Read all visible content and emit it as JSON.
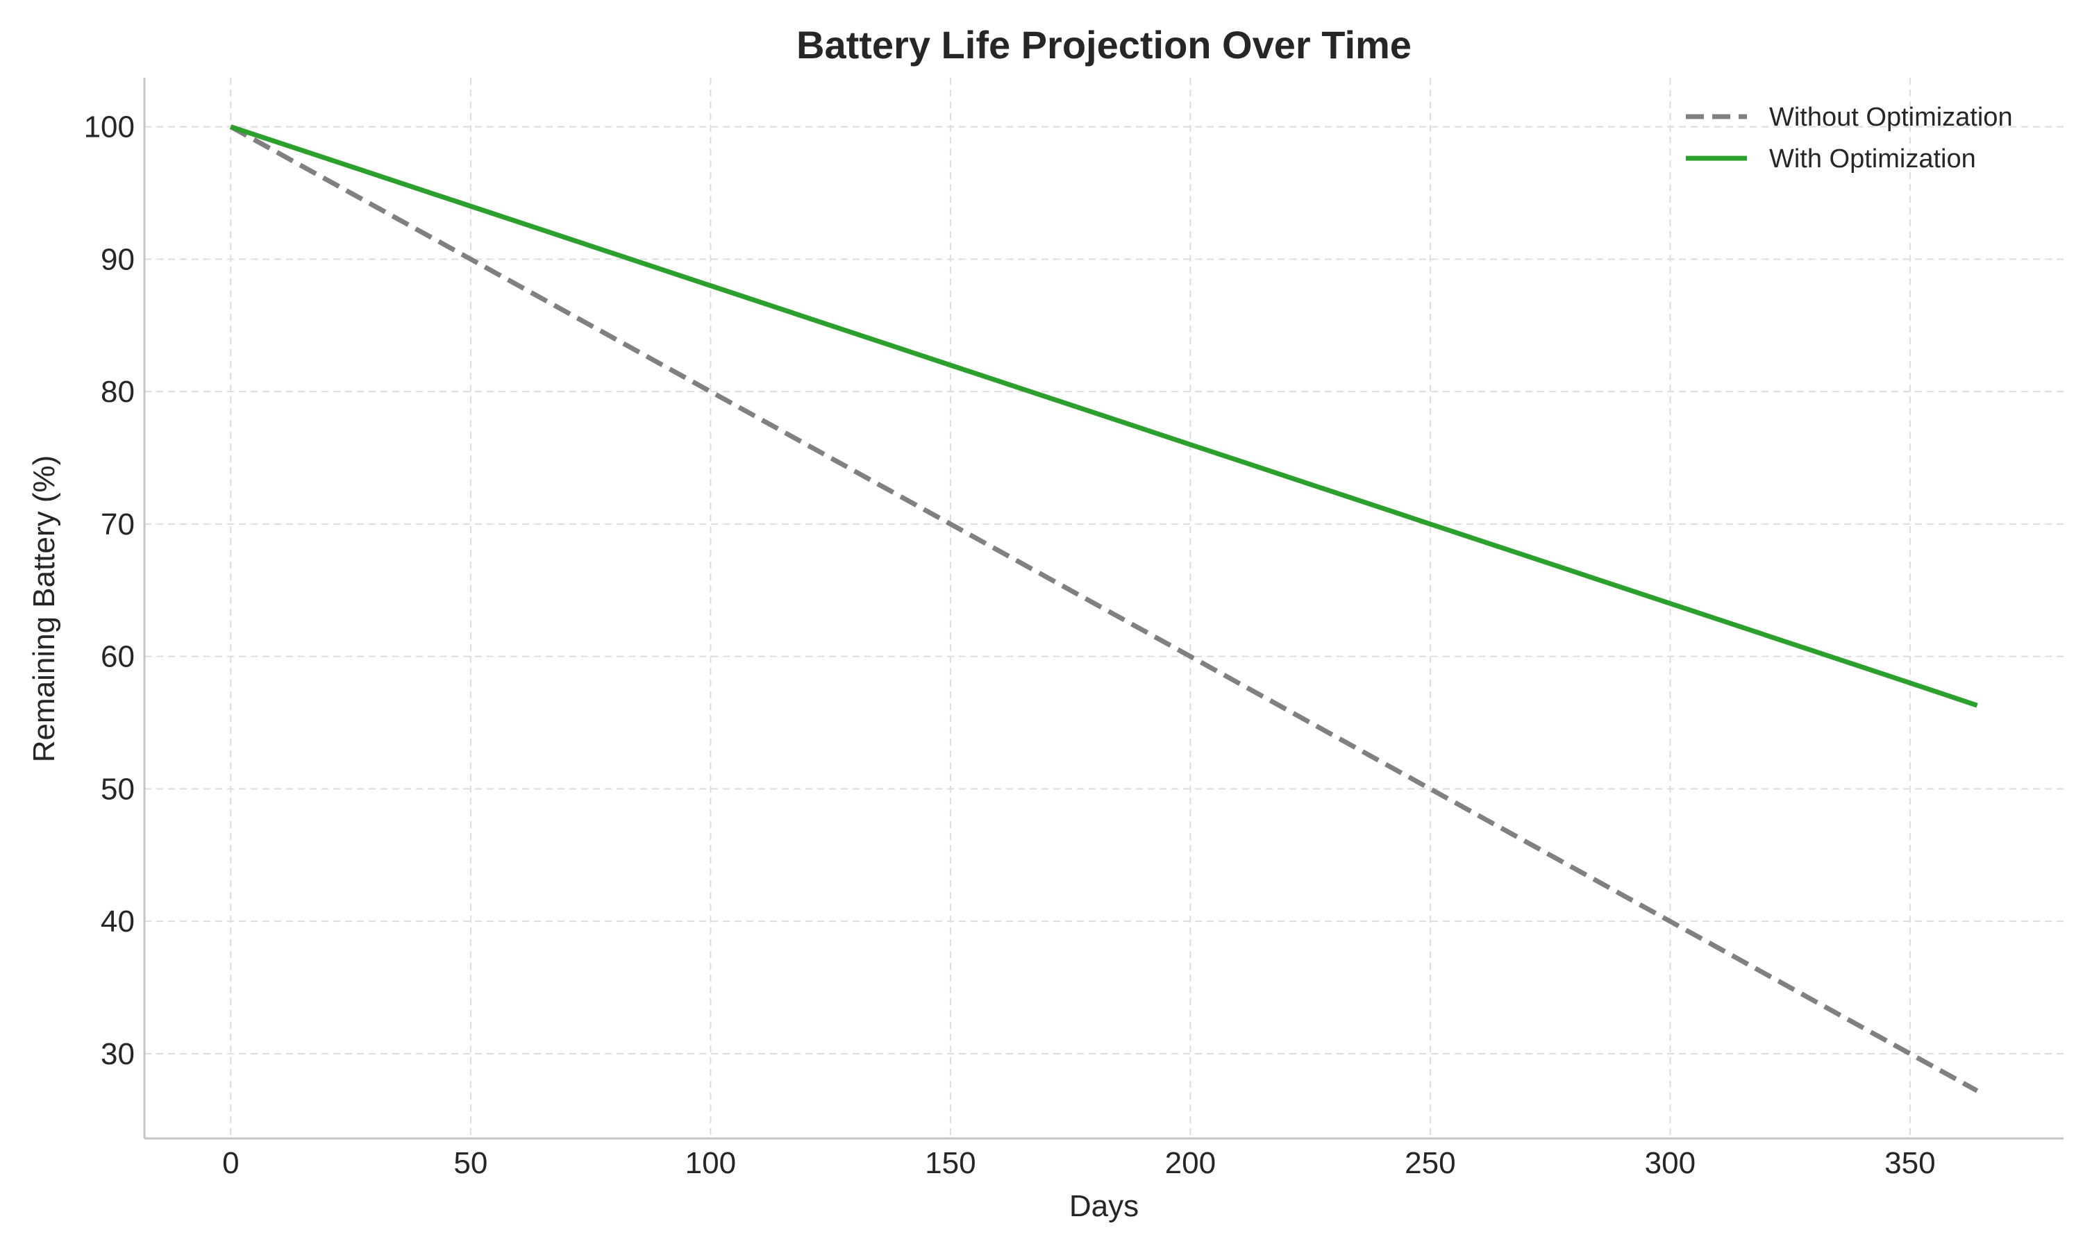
{
  "chart_data": {
    "type": "line",
    "title": "Battery Life Projection Over Time",
    "xlabel": "Days",
    "ylabel": "Remaining Battery (%)",
    "xlim": [
      -18,
      382
    ],
    "ylim": [
      23.6,
      103.7
    ],
    "xticks": [
      0,
      50,
      100,
      150,
      200,
      250,
      300,
      350
    ],
    "yticks": [
      30,
      40,
      50,
      60,
      70,
      80,
      90,
      100
    ],
    "grid": true,
    "legend_position": "top-right",
    "series": [
      {
        "name": "Without Optimization",
        "color": "#808080",
        "line_style": "dashed",
        "x": [
          0,
          50,
          100,
          150,
          200,
          250,
          300,
          350,
          364
        ],
        "y": [
          100,
          90,
          80,
          70,
          60,
          50,
          40,
          30,
          27.2
        ]
      },
      {
        "name": "With Optimization",
        "color": "#2ca02c",
        "line_style": "solid",
        "x": [
          0,
          50,
          100,
          150,
          200,
          250,
          300,
          350,
          364
        ],
        "y": [
          100,
          94,
          88,
          82,
          76,
          70,
          64,
          58,
          56.3
        ]
      }
    ]
  }
}
